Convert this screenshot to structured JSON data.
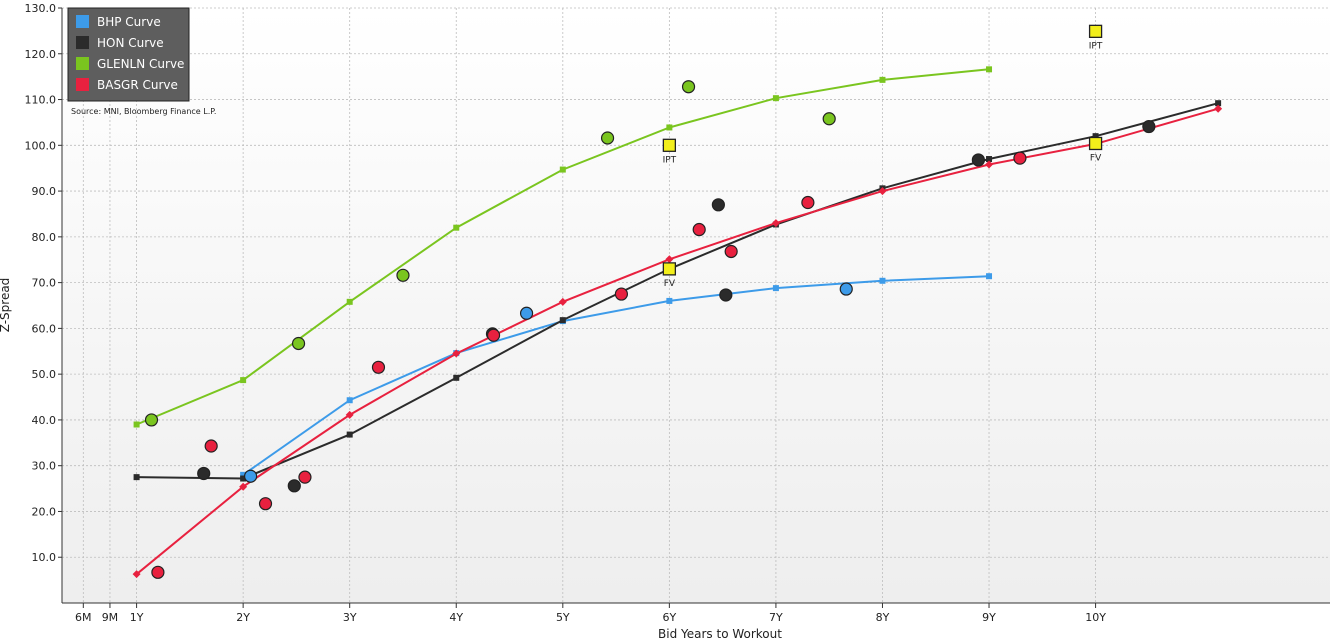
{
  "chart_data": {
    "type": "scatter",
    "xlabel": "Bid Years to Workout",
    "ylabel": "Z-Spread",
    "source": "Source: MNI, Bloomberg Finance L.P.",
    "xlim": [
      0.3,
      12.2
    ],
    "ylim": [
      0,
      130
    ],
    "x_ticks": [
      {
        "value": 0.5,
        "label": "6M"
      },
      {
        "value": 0.75,
        "label": "9M"
      },
      {
        "value": 1,
        "label": "1Y"
      },
      {
        "value": 2,
        "label": "2Y"
      },
      {
        "value": 3,
        "label": "3Y"
      },
      {
        "value": 4,
        "label": "4Y"
      },
      {
        "value": 5,
        "label": "5Y"
      },
      {
        "value": 6,
        "label": "6Y"
      },
      {
        "value": 7,
        "label": "7Y"
      },
      {
        "value": 8,
        "label": "8Y"
      },
      {
        "value": 9,
        "label": "9Y"
      },
      {
        "value": 10,
        "label": "10Y"
      }
    ],
    "y_ticks": [
      {
        "value": 10,
        "label": "10.0"
      },
      {
        "value": 20,
        "label": "20.0"
      },
      {
        "value": 30,
        "label": "30.0"
      },
      {
        "value": 40,
        "label": "40.0"
      },
      {
        "value": 50,
        "label": "50.0"
      },
      {
        "value": 60,
        "label": "60.0"
      },
      {
        "value": 70,
        "label": "70.0"
      },
      {
        "value": 80,
        "label": "80.0"
      },
      {
        "value": 90,
        "label": "90.0"
      },
      {
        "value": 100,
        "label": "100.0"
      },
      {
        "value": 110,
        "label": "110.0"
      },
      {
        "value": 120,
        "label": "120.0"
      },
      {
        "value": 130,
        "label": "130.0"
      }
    ],
    "grid": true,
    "legend_position": "top-left",
    "curves": [
      {
        "name": "BHP Curve",
        "color": "#3d9be9",
        "marker": "square",
        "x": [
          2,
          3,
          4,
          5,
          6,
          7,
          8,
          9
        ],
        "y": [
          28,
          44.3,
          54.6,
          61.6,
          66,
          68.8,
          70.4,
          71.4
        ]
      },
      {
        "name": "HON Curve",
        "color": "#2b2b2b",
        "marker": "square",
        "x": [
          1,
          2,
          3,
          4,
          5,
          6,
          7,
          8,
          9,
          10,
          11.15
        ],
        "y": [
          27.5,
          27.2,
          36.8,
          49.2,
          61.8,
          73,
          82.7,
          90.6,
          97,
          102,
          109.2
        ]
      },
      {
        "name": "GLENLN Curve",
        "color": "#7ac51f",
        "marker": "square",
        "x": [
          1,
          2,
          3,
          4,
          5,
          6,
          7,
          8,
          9
        ],
        "y": [
          39,
          48.7,
          65.8,
          82,
          94.7,
          103.9,
          110.3,
          114.3,
          116.6
        ]
      },
      {
        "name": "BASGR Curve",
        "color": "#e8213f",
        "marker": "diamond",
        "x": [
          1,
          2,
          3,
          4,
          5,
          6,
          7,
          8,
          9,
          10,
          11.15
        ],
        "y": [
          6.3,
          25.4,
          41.1,
          54.5,
          65.8,
          75.1,
          83,
          90,
          95.8,
          100.3,
          108
        ]
      }
    ],
    "bonds": [
      {
        "series": "GLENLN",
        "color": "#7ac51f",
        "points": [
          [
            1.14,
            40
          ],
          [
            2.52,
            56.7
          ],
          [
            3.5,
            71.6
          ],
          [
            5.42,
            101.6
          ],
          [
            6.18,
            112.8
          ],
          [
            7.5,
            105.8
          ]
        ]
      },
      {
        "series": "HON",
        "color": "#2b2b2b",
        "points": [
          [
            1.63,
            28.3
          ],
          [
            2.48,
            25.6
          ],
          [
            4.34,
            58.8
          ],
          [
            6.46,
            87
          ],
          [
            6.53,
            67.3
          ],
          [
            8.9,
            96.8
          ],
          [
            10.5,
            104.1
          ]
        ]
      },
      {
        "series": "BASGR",
        "color": "#e8213f",
        "points": [
          [
            1.2,
            6.7
          ],
          [
            1.7,
            34.3
          ],
          [
            2.21,
            21.7
          ],
          [
            2.58,
            27.5
          ],
          [
            3.27,
            51.5
          ],
          [
            4.35,
            58.5
          ],
          [
            5.55,
            67.5
          ],
          [
            6.28,
            81.6
          ],
          [
            6.58,
            76.8
          ],
          [
            7.3,
            87.5
          ],
          [
            9.29,
            97.2
          ]
        ]
      },
      {
        "series": "BHP",
        "color": "#3d9be9",
        "points": [
          [
            2.07,
            27.7
          ],
          [
            4.66,
            63.3
          ],
          [
            7.66,
            68.6
          ]
        ]
      }
    ],
    "annotations": [
      {
        "x": 6,
        "y": 100,
        "label": "IPT"
      },
      {
        "x": 6,
        "y": 73,
        "label": "FV"
      },
      {
        "x": 10,
        "y": 124.9,
        "label": "IPT"
      },
      {
        "x": 10,
        "y": 100.4,
        "label": "FV"
      }
    ]
  }
}
